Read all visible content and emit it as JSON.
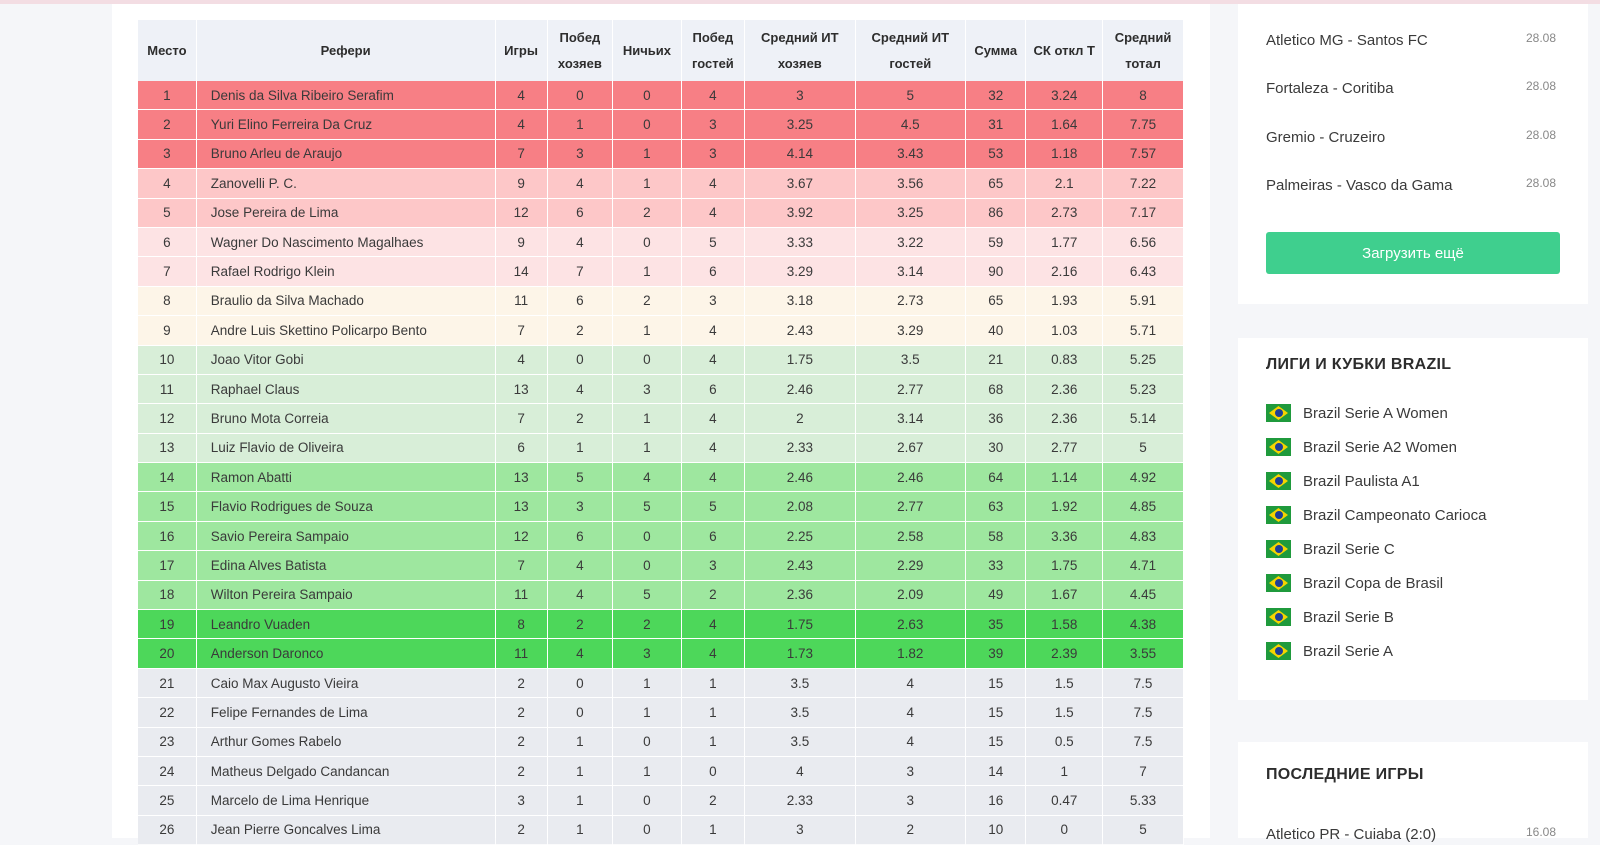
{
  "table": {
    "headers": [
      "Место",
      "Рефери",
      "Игры",
      "Побед хозяев",
      "Ничьих",
      "Побед гостей",
      "Средний ИТ хозяев",
      "Средний ИТ гостей",
      "Сумма",
      "СК откл Т",
      "Средний тотал"
    ],
    "rows": [
      {
        "place": "1",
        "name": "Denis da Silva Ribeiro Serafim",
        "games": "4",
        "home_wins": "0",
        "draws": "0",
        "away_wins": "4",
        "avg_home": "3",
        "avg_away": "5",
        "sum": "32",
        "sd": "3.24",
        "avg_total": "8",
        "color": "#f77f85"
      },
      {
        "place": "2",
        "name": "Yuri Elino Ferreira Da Cruz",
        "games": "4",
        "home_wins": "1",
        "draws": "0",
        "away_wins": "3",
        "avg_home": "3.25",
        "avg_away": "4.5",
        "sum": "31",
        "sd": "1.64",
        "avg_total": "7.75",
        "color": "#f77f85"
      },
      {
        "place": "3",
        "name": "Bruno Arleu de Araujo",
        "games": "7",
        "home_wins": "3",
        "draws": "1",
        "away_wins": "3",
        "avg_home": "4.14",
        "avg_away": "3.43",
        "sum": "53",
        "sd": "1.18",
        "avg_total": "7.57",
        "color": "#f77f85"
      },
      {
        "place": "4",
        "name": "Zanovelli P. C.",
        "games": "9",
        "home_wins": "4",
        "draws": "1",
        "away_wins": "4",
        "avg_home": "3.67",
        "avg_away": "3.56",
        "sum": "65",
        "sd": "2.1",
        "avg_total": "7.22",
        "color": "#fdc7c8"
      },
      {
        "place": "5",
        "name": "Jose Pereira de Lima",
        "games": "12",
        "home_wins": "6",
        "draws": "2",
        "away_wins": "4",
        "avg_home": "3.92",
        "avg_away": "3.25",
        "sum": "86",
        "sd": "2.73",
        "avg_total": "7.17",
        "color": "#fdc7c8"
      },
      {
        "place": "6",
        "name": "Wagner Do Nascimento Magalhaes",
        "games": "9",
        "home_wins": "4",
        "draws": "0",
        "away_wins": "5",
        "avg_home": "3.33",
        "avg_away": "3.22",
        "sum": "59",
        "sd": "1.77",
        "avg_total": "6.56",
        "color": "#fde3e4"
      },
      {
        "place": "7",
        "name": "Rafael Rodrigo Klein",
        "games": "14",
        "home_wins": "7",
        "draws": "1",
        "away_wins": "6",
        "avg_home": "3.29",
        "avg_away": "3.14",
        "sum": "90",
        "sd": "2.16",
        "avg_total": "6.43",
        "color": "#fde3e4"
      },
      {
        "place": "8",
        "name": "Braulio da Silva Machado",
        "games": "11",
        "home_wins": "6",
        "draws": "2",
        "away_wins": "3",
        "avg_home": "3.18",
        "avg_away": "2.73",
        "sum": "65",
        "sd": "1.93",
        "avg_total": "5.91",
        "color": "#fdf5e8"
      },
      {
        "place": "9",
        "name": "Andre Luis Skettino Policarpo Bento",
        "games": "7",
        "home_wins": "2",
        "draws": "1",
        "away_wins": "4",
        "avg_home": "2.43",
        "avg_away": "3.29",
        "sum": "40",
        "sd": "1.03",
        "avg_total": "5.71",
        "color": "#fdf5e8"
      },
      {
        "place": "10",
        "name": "Joao Vitor Gobi",
        "games": "4",
        "home_wins": "0",
        "draws": "0",
        "away_wins": "4",
        "avg_home": "1.75",
        "avg_away": "3.5",
        "sum": "21",
        "sd": "0.83",
        "avg_total": "5.25",
        "color": "#d8eed8"
      },
      {
        "place": "11",
        "name": "Raphael Claus",
        "games": "13",
        "home_wins": "4",
        "draws": "3",
        "away_wins": "6",
        "avg_home": "2.46",
        "avg_away": "2.77",
        "sum": "68",
        "sd": "2.36",
        "avg_total": "5.23",
        "color": "#d8eed8"
      },
      {
        "place": "12",
        "name": "Bruno Mota Correia",
        "games": "7",
        "home_wins": "2",
        "draws": "1",
        "away_wins": "4",
        "avg_home": "2",
        "avg_away": "3.14",
        "sum": "36",
        "sd": "2.36",
        "avg_total": "5.14",
        "color": "#d8eed8"
      },
      {
        "place": "13",
        "name": "Luiz Flavio de Oliveira",
        "games": "6",
        "home_wins": "1",
        "draws": "1",
        "away_wins": "4",
        "avg_home": "2.33",
        "avg_away": "2.67",
        "sum": "30",
        "sd": "2.77",
        "avg_total": "5",
        "color": "#d8eed8"
      },
      {
        "place": "14",
        "name": "Ramon Abatti",
        "games": "13",
        "home_wins": "5",
        "draws": "4",
        "away_wins": "4",
        "avg_home": "2.46",
        "avg_away": "2.46",
        "sum": "64",
        "sd": "1.14",
        "avg_total": "4.92",
        "color": "#9ee79f"
      },
      {
        "place": "15",
        "name": "Flavio Rodrigues de Souza",
        "games": "13",
        "home_wins": "3",
        "draws": "5",
        "away_wins": "5",
        "avg_home": "2.08",
        "avg_away": "2.77",
        "sum": "63",
        "sd": "1.92",
        "avg_total": "4.85",
        "color": "#9ee79f"
      },
      {
        "place": "16",
        "name": "Savio Pereira Sampaio",
        "games": "12",
        "home_wins": "6",
        "draws": "0",
        "away_wins": "6",
        "avg_home": "2.25",
        "avg_away": "2.58",
        "sum": "58",
        "sd": "3.36",
        "avg_total": "4.83",
        "color": "#9ee79f"
      },
      {
        "place": "17",
        "name": "Edina Alves Batista",
        "games": "7",
        "home_wins": "4",
        "draws": "0",
        "away_wins": "3",
        "avg_home": "2.43",
        "avg_away": "2.29",
        "sum": "33",
        "sd": "1.75",
        "avg_total": "4.71",
        "color": "#9ee79f"
      },
      {
        "place": "18",
        "name": "Wilton Pereira Sampaio",
        "games": "11",
        "home_wins": "4",
        "draws": "5",
        "away_wins": "2",
        "avg_home": "2.36",
        "avg_away": "2.09",
        "sum": "49",
        "sd": "1.67",
        "avg_total": "4.45",
        "color": "#9ee79f"
      },
      {
        "place": "19",
        "name": "Leandro Vuaden",
        "games": "8",
        "home_wins": "2",
        "draws": "2",
        "away_wins": "4",
        "avg_home": "1.75",
        "avg_away": "2.63",
        "sum": "35",
        "sd": "1.58",
        "avg_total": "4.38",
        "color": "#4dd75a"
      },
      {
        "place": "20",
        "name": "Anderson Daronco",
        "games": "11",
        "home_wins": "4",
        "draws": "3",
        "away_wins": "4",
        "avg_home": "1.73",
        "avg_away": "1.82",
        "sum": "39",
        "sd": "2.39",
        "avg_total": "3.55",
        "color": "#4dd75a"
      },
      {
        "place": "21",
        "name": "Caio Max Augusto Vieira",
        "games": "2",
        "home_wins": "0",
        "draws": "1",
        "away_wins": "1",
        "avg_home": "3.5",
        "avg_away": "4",
        "sum": "15",
        "sd": "1.5",
        "avg_total": "7.5",
        "color": "#e9ebf0"
      },
      {
        "place": "22",
        "name": "Felipe Fernandes de Lima",
        "games": "2",
        "home_wins": "0",
        "draws": "1",
        "away_wins": "1",
        "avg_home": "3.5",
        "avg_away": "4",
        "sum": "15",
        "sd": "1.5",
        "avg_total": "7.5",
        "color": "#e9ebf0"
      },
      {
        "place": "23",
        "name": "Arthur Gomes Rabelo",
        "games": "2",
        "home_wins": "1",
        "draws": "0",
        "away_wins": "1",
        "avg_home": "3.5",
        "avg_away": "4",
        "sum": "15",
        "sd": "0.5",
        "avg_total": "7.5",
        "color": "#e9ebf0"
      },
      {
        "place": "24",
        "name": "Matheus Delgado Candancan",
        "games": "2",
        "home_wins": "1",
        "draws": "1",
        "away_wins": "0",
        "avg_home": "4",
        "avg_away": "3",
        "sum": "14",
        "sd": "1",
        "avg_total": "7",
        "color": "#e9ebf0"
      },
      {
        "place": "25",
        "name": "Marcelo de Lima Henrique",
        "games": "3",
        "home_wins": "1",
        "draws": "0",
        "away_wins": "2",
        "avg_home": "2.33",
        "avg_away": "3",
        "sum": "16",
        "sd": "0.47",
        "avg_total": "5.33",
        "color": "#e9ebf0"
      },
      {
        "place": "26",
        "name": "Jean Pierre Goncalves Lima",
        "games": "2",
        "home_wins": "1",
        "draws": "0",
        "away_wins": "1",
        "avg_home": "3",
        "avg_away": "2",
        "sum": "10",
        "sd": "0",
        "avg_total": "5",
        "color": "#e9ebf0"
      }
    ]
  },
  "upcoming": {
    "matches": [
      {
        "teams": "Atletico MG - Santos FC",
        "date": "28.08"
      },
      {
        "teams": "Fortaleza - Coritiba",
        "date": "28.08"
      },
      {
        "teams": "Gremio - Cruzeiro",
        "date": "28.08"
      },
      {
        "teams": "Palmeiras - Vasco da Gama",
        "date": "28.08"
      }
    ],
    "load_more_label": "Загрузить ещё"
  },
  "leagues": {
    "title": "ЛИГИ И КУБКИ BRAZIL",
    "items": [
      "Brazil Serie A Women",
      "Brazil Serie A2 Women",
      "Brazil Paulista A1",
      "Brazil Campeonato Carioca",
      "Brazil Serie C",
      "Brazil Copa de Brasil",
      "Brazil Serie B",
      "Brazil Serie A"
    ]
  },
  "last_games": {
    "title": "ПОСЛЕДНИЕ ИГРЫ",
    "matches": [
      {
        "teams": "Atletico PR - Cuiaba (2:0)",
        "date": "16.08"
      }
    ]
  }
}
